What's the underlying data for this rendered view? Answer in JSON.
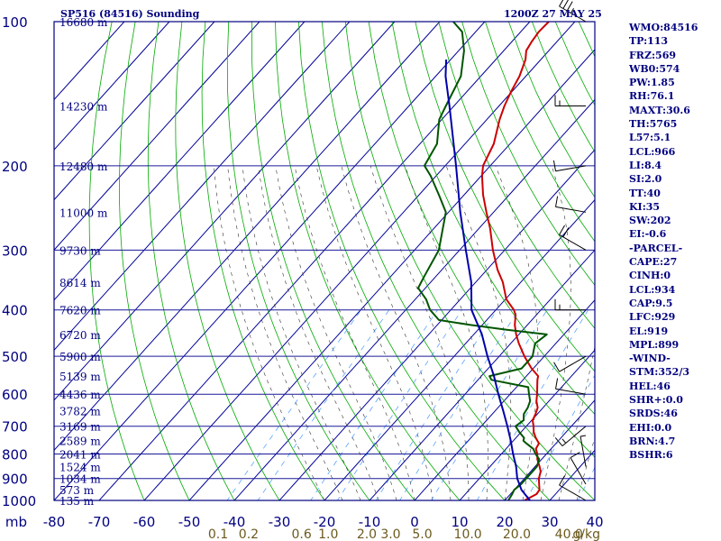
{
  "header": {
    "station_title": "SP516 (84516) Sounding",
    "time_title": "1200Z 27 MAY 25"
  },
  "stats": [
    "WMO:84516",
    "TP:113",
    "FRZ:569",
    "WB0:574",
    "PW:1.85",
    "RH:76.1",
    "MAXT:30.6",
    "TH:5765",
    "L57:5.1",
    "LCL:966",
    "LI:8.4",
    "SI:2.0",
    "TT:40",
    "KI:35",
    "SW:202",
    "EI:-0.6",
    "-PARCEL-",
    "CAPE:27",
    "CINH:0",
    "LCL:934",
    "CAP:9.5",
    "LFC:929",
    "EL:919",
    "MPL:899",
    "-WIND-",
    "STM:352/3",
    "HEL:46",
    "SHR+:0.0",
    "SRDS:46",
    "EHI:0.0",
    "BRN:4.7",
    "BSHR:6"
  ],
  "chart_data": {
    "type": "line",
    "subtype": "skew-T log-P sounding",
    "y_axis": {
      "label": "mb",
      "scale": "log",
      "range": [
        1000,
        100
      ],
      "ticks": [
        100,
        200,
        300,
        400,
        500,
        600,
        700,
        800,
        900,
        1000
      ]
    },
    "x_axis": {
      "range": [
        -80,
        40
      ],
      "ticks": [
        -80,
        -70,
        -60,
        -50,
        -40,
        -30,
        -20,
        -10,
        0,
        10,
        20,
        30,
        40
      ]
    },
    "mixing_ratio_labels": [
      "0.1",
      "0.2",
      "0.6",
      "1.0",
      "2.0",
      "3.0",
      "5.0",
      "10.0",
      "20.0",
      "40.0"
    ],
    "mixing_ratio_unit": "g/kg",
    "height_labels": [
      {
        "p": 100,
        "label": "16680 m"
      },
      {
        "p": 150,
        "label": "14230 m"
      },
      {
        "p": 200,
        "label": "12480 m"
      },
      {
        "p": 250,
        "label": "11000 m"
      },
      {
        "p": 300,
        "label": "9730 m"
      },
      {
        "p": 350,
        "label": "8614 m"
      },
      {
        "p": 400,
        "label": "7620 m"
      },
      {
        "p": 450,
        "label": "6720 m"
      },
      {
        "p": 500,
        "label": "5900 m"
      },
      {
        "p": 550,
        "label": "5139 m"
      },
      {
        "p": 600,
        "label": "4436 m"
      },
      {
        "p": 650,
        "label": "3782 m"
      },
      {
        "p": 700,
        "label": "3169 m"
      },
      {
        "p": 750,
        "label": "2589 m"
      },
      {
        "p": 800,
        "label": "2041 m"
      },
      {
        "p": 850,
        "label": "1524 m"
      },
      {
        "p": 900,
        "label": "1034 m"
      },
      {
        "p": 950,
        "label": "573 m"
      },
      {
        "p": 1000,
        "label": "135 m"
      }
    ],
    "colors": {
      "temperature": "#cc0000",
      "dewpoint": "#005500",
      "parcel": "#0000aa",
      "frame": "#000080",
      "isobar": "#1a1a99",
      "isotherm": "#000099",
      "dry_adiabat": "#00aa00",
      "moist_adiabat": "#333333",
      "mixing_ratio": "#4499ff",
      "axis_text": "#000080",
      "mixing_text": "#6b5a1e"
    },
    "series": [
      {
        "key": "temperature",
        "points": [
          [
            1000,
            24.4
          ],
          [
            970,
            25.8
          ],
          [
            950,
            25.6
          ],
          [
            925,
            24.4
          ],
          [
            900,
            23.2
          ],
          [
            870,
            22.2
          ],
          [
            850,
            21.0
          ],
          [
            820,
            19.0
          ],
          [
            800,
            18.0
          ],
          [
            780,
            16.6
          ],
          [
            760,
            16.2
          ],
          [
            740,
            14.4
          ],
          [
            720,
            12.8
          ],
          [
            700,
            11.6
          ],
          [
            680,
            10.2
          ],
          [
            660,
            9.6
          ],
          [
            640,
            8.8
          ],
          [
            620,
            7.2
          ],
          [
            600,
            6.0
          ],
          [
            580,
            4.6
          ],
          [
            560,
            3.2
          ],
          [
            550,
            2.6
          ],
          [
            530,
            -0.4
          ],
          [
            500,
            -4.4
          ],
          [
            470,
            -8.2
          ],
          [
            450,
            -10.6
          ],
          [
            430,
            -12.8
          ],
          [
            410,
            -14.6
          ],
          [
            400,
            -16.0
          ],
          [
            380,
            -19.8
          ],
          [
            350,
            -24.0
          ],
          [
            330,
            -27.6
          ],
          [
            300,
            -32.6
          ],
          [
            270,
            -37.6
          ],
          [
            250,
            -41.6
          ],
          [
            230,
            -45.8
          ],
          [
            210,
            -49.8
          ],
          [
            200,
            -51.6
          ],
          [
            180,
            -53.6
          ],
          [
            160,
            -57.2
          ],
          [
            150,
            -58.8
          ],
          [
            140,
            -60.2
          ],
          [
            130,
            -61.4
          ],
          [
            120,
            -63.4
          ],
          [
            115,
            -65.0
          ],
          [
            110,
            -65.6
          ],
          [
            105,
            -66.0
          ],
          [
            100,
            -65.8
          ]
        ]
      },
      {
        "key": "dewpoint",
        "points": [
          [
            1000,
            20.8
          ],
          [
            970,
            20.4
          ],
          [
            950,
            20.0
          ],
          [
            925,
            20.4
          ],
          [
            900,
            20.4
          ],
          [
            870,
            20.4
          ],
          [
            850,
            20.4
          ],
          [
            820,
            19.4
          ],
          [
            800,
            17.6
          ],
          [
            780,
            16.0
          ],
          [
            760,
            13.4
          ],
          [
            750,
            12.2
          ],
          [
            740,
            11.8
          ],
          [
            720,
            9.6
          ],
          [
            700,
            7.6
          ],
          [
            680,
            8.2
          ],
          [
            660,
            7.0
          ],
          [
            640,
            6.6
          ],
          [
            620,
            5.8
          ],
          [
            600,
            4.2
          ],
          [
            580,
            2.6
          ],
          [
            560,
            -7.0
          ],
          [
            550,
            -8.2
          ],
          [
            530,
            -2.6
          ],
          [
            500,
            -2.6
          ],
          [
            470,
            -4.6
          ],
          [
            450,
            -3.8
          ],
          [
            440,
            -13.6
          ],
          [
            430,
            -22.6
          ],
          [
            420,
            -30.6
          ],
          [
            400,
            -34.6
          ],
          [
            380,
            -37.6
          ],
          [
            360,
            -41.6
          ],
          [
            340,
            -42.6
          ],
          [
            300,
            -44.6
          ],
          [
            250,
            -50.6
          ],
          [
            230,
            -55.6
          ],
          [
            210,
            -61.2
          ],
          [
            200,
            -64.6
          ],
          [
            180,
            -66.2
          ],
          [
            160,
            -70.6
          ],
          [
            150,
            -71.8
          ],
          [
            130,
            -74.4
          ],
          [
            115,
            -78.8
          ],
          [
            105,
            -83.0
          ],
          [
            100,
            -87.0
          ]
        ]
      },
      {
        "key": "parcel",
        "points": [
          [
            1000,
            25.6
          ],
          [
            950,
            21.6
          ],
          [
            900,
            18.4
          ],
          [
            850,
            15.8
          ],
          [
            800,
            12.6
          ],
          [
            750,
            9.4
          ],
          [
            700,
            5.8
          ],
          [
            650,
            1.8
          ],
          [
            600,
            -2.6
          ],
          [
            550,
            -7.2
          ],
          [
            500,
            -12.6
          ],
          [
            450,
            -18.2
          ],
          [
            400,
            -25.4
          ],
          [
            350,
            -31.0
          ],
          [
            300,
            -38.6
          ],
          [
            250,
            -47.4
          ],
          [
            200,
            -57.6
          ],
          [
            150,
            -71.0
          ],
          [
            130,
            -77.8
          ],
          [
            120,
            -81.0
          ]
        ]
      }
    ],
    "wind_barbs": [
      {
        "p": 1000,
        "dir": 300,
        "spd": 10
      },
      {
        "p": 925,
        "dir": 330,
        "spd": 10
      },
      {
        "p": 850,
        "dir": 350,
        "spd": 5
      },
      {
        "p": 700,
        "dir": 230,
        "spd": 15
      },
      {
        "p": 600,
        "dir": 280,
        "spd": 10
      },
      {
        "p": 500,
        "dir": 240,
        "spd": 10
      },
      {
        "p": 400,
        "dir": 270,
        "spd": 15
      },
      {
        "p": 300,
        "dir": 300,
        "spd": 20
      },
      {
        "p": 250,
        "dir": 280,
        "spd": 10
      },
      {
        "p": 200,
        "dir": 260,
        "spd": 10
      },
      {
        "p": 150,
        "dir": 270,
        "spd": 15
      },
      {
        "p": 100,
        "dir": 300,
        "spd": 35
      }
    ]
  }
}
